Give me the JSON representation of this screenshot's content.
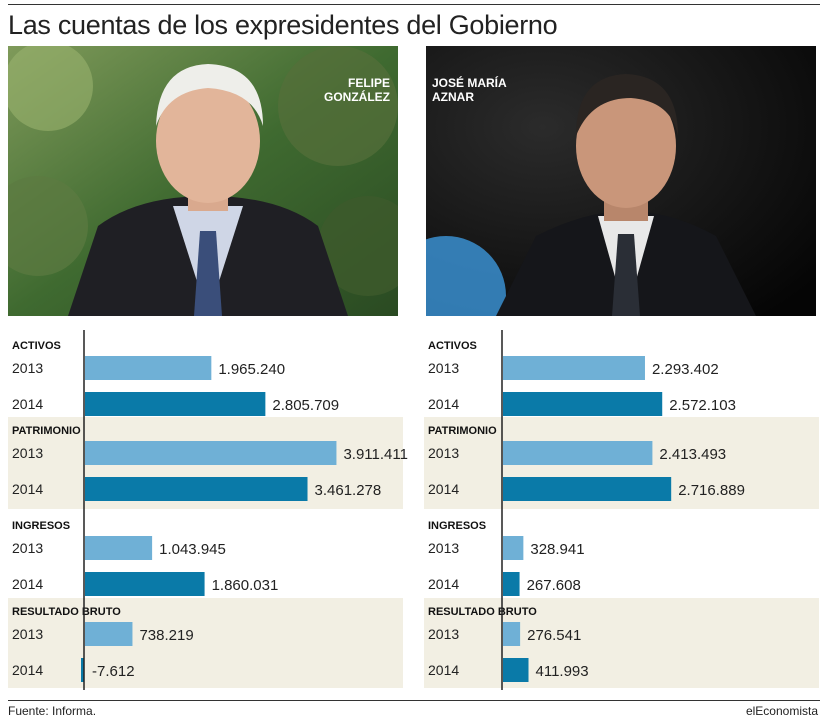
{
  "title": "Las cuentas de los expresidentes del Gobierno",
  "source": "Fuente: Informa.",
  "brand": "elEconomista",
  "colors": {
    "y2013": "#6fb0d6",
    "y2014": "#0a7aa8",
    "shade": "#f2efe3",
    "axis": "#222222"
  },
  "chart_data": [
    {
      "type": "bar",
      "person": [
        "FELIPE",
        "GONZÁLEZ"
      ],
      "scale_max": 4200000,
      "groups": [
        {
          "label": "ACTIVOS",
          "shaded": false,
          "rows": [
            {
              "year": "2013",
              "value": 1965240,
              "text": "1.965.240"
            },
            {
              "year": "2014",
              "value": 2805709,
              "text": "2.805.709"
            }
          ]
        },
        {
          "label": "PATRIMONIO",
          "shaded": true,
          "rows": [
            {
              "year": "2013",
              "value": 3911411,
              "text": "3.911.411"
            },
            {
              "year": "2014",
              "value": 3461278,
              "text": "3.461.278"
            }
          ]
        },
        {
          "label": "INGRESOS",
          "shaded": false,
          "rows": [
            {
              "year": "2013",
              "value": 1043945,
              "text": "1.043.945"
            },
            {
              "year": "2014",
              "value": 1860031,
              "text": "1.860.031"
            }
          ]
        },
        {
          "label": "RESULTADO BRUTO",
          "shaded": true,
          "rows": [
            {
              "year": "2013",
              "value": 738219,
              "text": "738.219"
            },
            {
              "year": "2014",
              "value": -7612,
              "text": "-7.612"
            }
          ]
        }
      ]
    },
    {
      "type": "bar",
      "person": [
        "JOSÉ MARÍA",
        "AZNAR"
      ],
      "scale_max": 4200000,
      "groups": [
        {
          "label": "ACTIVOS",
          "shaded": false,
          "rows": [
            {
              "year": "2013",
              "value": 2293402,
              "text": "2.293.402"
            },
            {
              "year": "2014",
              "value": 2572103,
              "text": "2.572.103"
            }
          ]
        },
        {
          "label": "PATRIMONIO",
          "shaded": true,
          "rows": [
            {
              "year": "2013",
              "value": 2413493,
              "text": "2.413.493"
            },
            {
              "year": "2014",
              "value": 2716889,
              "text": "2.716.889"
            }
          ]
        },
        {
          "label": "INGRESOS",
          "shaded": false,
          "rows": [
            {
              "year": "2013",
              "value": 328941,
              "text": "328.941"
            },
            {
              "year": "2014",
              "value": 267608,
              "text": "267.608"
            }
          ]
        },
        {
          "label": "RESULTADO BRUTO",
          "shaded": true,
          "rows": [
            {
              "year": "2013",
              "value": 276541,
              "text": "276.541"
            },
            {
              "year": "2014",
              "value": 411993,
              "text": "411.993"
            }
          ]
        }
      ]
    }
  ]
}
